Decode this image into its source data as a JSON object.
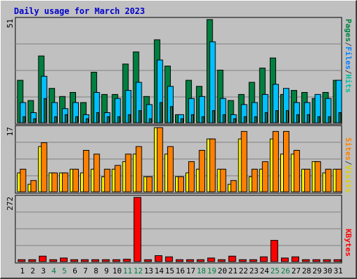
{
  "title": "Daily usage for March 2023",
  "colors": {
    "pages": "#1b7b55",
    "files": "#00c0ff",
    "hits": "#008040",
    "sites": "#ff8000",
    "visits": "#ffff00",
    "kbytes": "#ff0000",
    "weekend_label": "#008040",
    "weekday_label": "#000000",
    "sep": "#404040"
  },
  "chart_data": [
    {
      "type": "bar",
      "panel": "hits",
      "max_label": "51",
      "ylim": [
        0,
        51
      ],
      "legend": [
        "Pages",
        "/",
        "Files",
        "/",
        "Hits"
      ],
      "categories": [
        "1",
        "2",
        "3",
        "4",
        "5",
        "6",
        "7",
        "8",
        "9",
        "10",
        "11",
        "12",
        "13",
        "14",
        "15",
        "16",
        "17",
        "18",
        "19",
        "20",
        "21",
        "22",
        "23",
        "24",
        "25",
        "26",
        "27",
        "28",
        "29",
        "30",
        "31"
      ],
      "series": [
        {
          "name": "Hits",
          "values": [
            21,
            11,
            33,
            17,
            13,
            15,
            10,
            25,
            14,
            14,
            29,
            35,
            13,
            41,
            28,
            4,
            21,
            18,
            51,
            26,
            11,
            14,
            20,
            27,
            32,
            14,
            16,
            15,
            12,
            15,
            21
          ]
        },
        {
          "name": "Files",
          "values": [
            10,
            5,
            23,
            10,
            7,
            10,
            4,
            15,
            5,
            12,
            16,
            20,
            9,
            31,
            18,
            4,
            12,
            13,
            40,
            12,
            4,
            9,
            10,
            14,
            19,
            17,
            10,
            10,
            14,
            12,
            21
          ]
        },
        {
          "name": "Pages",
          "values": [
            3,
            2,
            12,
            3,
            4,
            3,
            2,
            5,
            3,
            3,
            4,
            6,
            2,
            10,
            8,
            2,
            4,
            3,
            6,
            4,
            2,
            3,
            3,
            5,
            6,
            6,
            4,
            4,
            3,
            3,
            5
          ]
        }
      ]
    },
    {
      "type": "bar",
      "panel": "sites",
      "max_label": "17",
      "ylim": [
        0,
        17
      ],
      "legend": [
        "Sites",
        "/",
        "Visits"
      ],
      "series": [
        {
          "name": "Visits",
          "values": [
            5,
            2,
            12,
            5,
            5,
            6,
            5,
            6,
            4,
            6,
            8,
            10,
            4,
            17,
            10,
            4,
            5,
            6,
            14,
            6,
            2,
            14,
            4,
            6,
            14,
            10,
            10,
            6,
            8,
            5,
            6
          ]
        },
        {
          "name": "Sites",
          "values": [
            6,
            3,
            13,
            5,
            5,
            6,
            11,
            10,
            6,
            7,
            10,
            12,
            4,
            17,
            12,
            4,
            8,
            11,
            14,
            6,
            3,
            16,
            6,
            8,
            16,
            16,
            11,
            6,
            8,
            6,
            6
          ]
        }
      ]
    },
    {
      "type": "bar",
      "panel": "kbytes",
      "max_label": "272",
      "ylim": [
        0,
        272
      ],
      "legend": [
        "KBytes"
      ],
      "series": [
        {
          "name": "KBytes",
          "values": [
            8,
            8,
            23,
            8,
            15,
            8,
            8,
            8,
            8,
            8,
            10,
            272,
            8,
            25,
            20,
            8,
            8,
            8,
            15,
            8,
            23,
            8,
            8,
            20,
            90,
            15,
            20,
            8,
            8,
            8,
            8
          ]
        }
      ]
    }
  ],
  "weekend_days": [
    4,
    5,
    11,
    12,
    18,
    19,
    25,
    26
  ]
}
